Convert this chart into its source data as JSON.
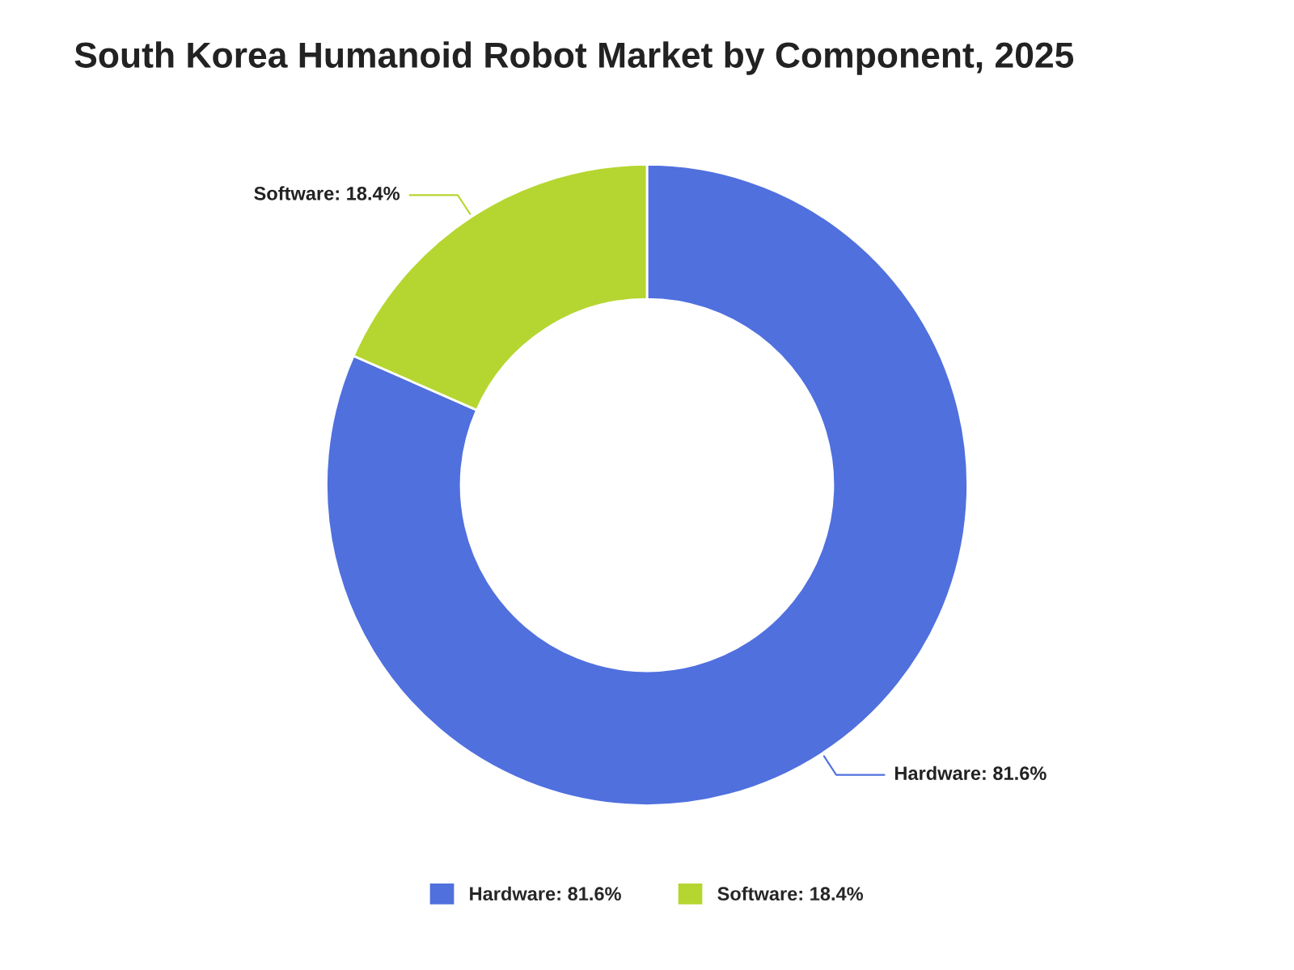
{
  "chart_data": {
    "type": "donut",
    "title": "South Korea Humanoid Robot Market by Component, 2025",
    "categories": [
      "Hardware: 81.6%",
      "Software: 18.4%"
    ],
    "values": [
      81.6,
      18.4
    ],
    "colors": [
      "#5070de",
      "#b5d631"
    ],
    "legend": "bottom"
  }
}
